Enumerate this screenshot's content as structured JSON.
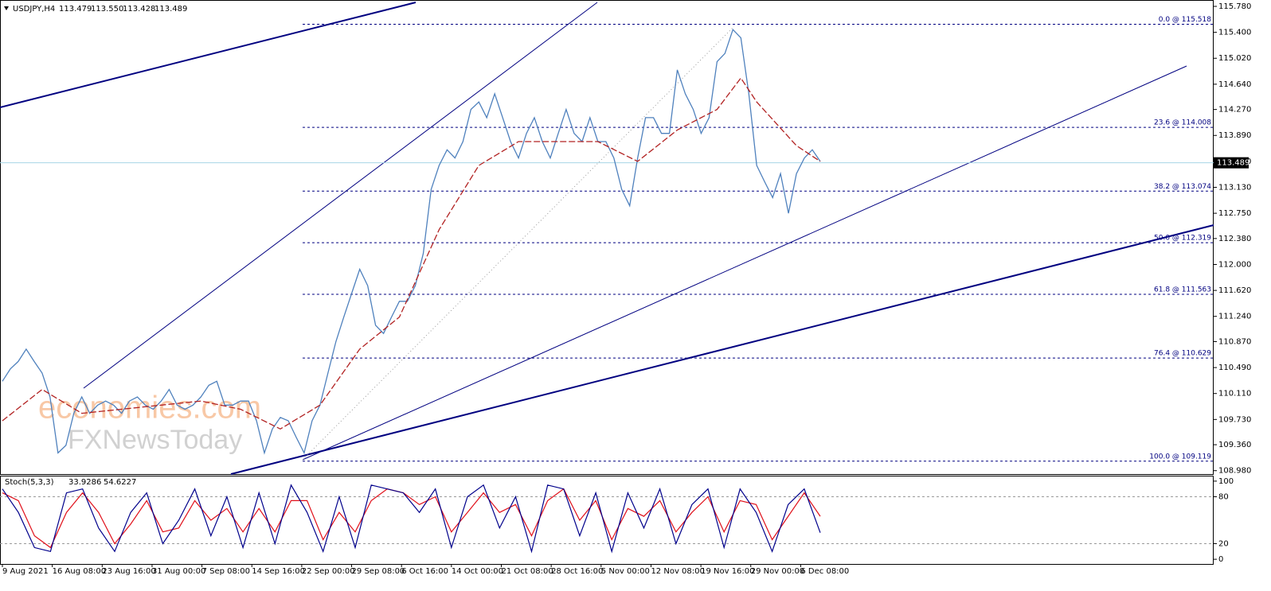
{
  "chart_data": {
    "type": "line",
    "header": {
      "symbol": "USDJPY,H4",
      "open": 113.479,
      "high": {
        "value": 113.55,
        "label": "113.550"
      },
      "low": 113.428,
      "close": 113.489
    },
    "watermark": [
      "economies.com",
      "FXNewsToday"
    ],
    "x_labels": [
      "9 Aug 2021",
      "16 Aug 08:00",
      "23 Aug 16:00",
      "31 Aug 00:00",
      "7 Sep 08:00",
      "14 Sep 16:00",
      "22 Sep 00:00",
      "29 Sep 08:00",
      "6 Oct 16:00",
      "14 Oct 00:00",
      "21 Oct 08:00",
      "28 Oct 16:00",
      "5 Nov 00:00",
      "12 Nov 08:00",
      "19 Nov 16:00",
      "29 Nov 00:00",
      "6 Dec 08:00"
    ],
    "ylim": [
      108.93,
      115.85
    ],
    "yticks": [
      {
        "value": 115.78,
        "label": "115.780"
      },
      {
        "value": 115.4,
        "label": "115.400"
      },
      {
        "value": 115.02,
        "label": "115.020"
      },
      {
        "value": 114.64,
        "label": "114.640"
      },
      {
        "value": 114.27,
        "label": "114.270"
      },
      {
        "value": 113.89,
        "label": "113.890"
      },
      {
        "value": 113.51,
        "label": "113.510"
      },
      {
        "value": 113.13,
        "label": "113.130"
      },
      {
        "value": 112.75,
        "label": "112.750"
      },
      {
        "value": 112.38,
        "label": "112.380"
      },
      {
        "value": 112.0,
        "label": "112.000"
      },
      {
        "value": 111.62,
        "label": "111.620"
      },
      {
        "value": 111.24,
        "label": "111.240"
      },
      {
        "value": 110.87,
        "label": "110.870"
      },
      {
        "value": 110.49,
        "label": "110.490"
      },
      {
        "value": 110.11,
        "label": "110.110"
      },
      {
        "value": 109.73,
        "label": "109.730"
      },
      {
        "value": 109.36,
        "label": "109.360"
      },
      {
        "value": 108.98,
        "label": "108.980"
      }
    ],
    "price": {
      "color": "#4f81bd",
      "values": [
        110.29,
        110.47,
        110.58,
        110.76,
        110.58,
        110.41,
        110.06,
        109.24,
        109.35,
        109.82,
        110.06,
        109.82,
        109.94,
        110.0,
        109.94,
        109.82,
        110.0,
        110.06,
        109.94,
        109.88,
        110.0,
        110.17,
        109.94,
        109.88,
        109.94,
        110.06,
        110.23,
        110.29,
        109.94,
        109.94,
        110.0,
        110.0,
        109.71,
        109.24,
        109.59,
        109.76,
        109.71,
        109.47,
        109.24,
        109.71,
        109.94,
        110.41,
        110.87,
        111.23,
        111.58,
        111.93,
        111.69,
        111.11,
        110.99,
        111.23,
        111.46,
        111.46,
        111.69,
        112.16,
        113.1,
        113.45,
        113.68,
        113.56,
        113.8,
        114.27,
        114.38,
        114.15,
        114.5,
        114.15,
        113.8,
        113.56,
        113.92,
        114.15,
        113.8,
        113.56,
        113.92,
        114.27,
        113.92,
        113.8,
        114.15,
        113.8,
        113.8,
        113.56,
        113.1,
        112.86,
        113.56,
        114.15,
        114.15,
        113.92,
        113.92,
        114.85,
        114.5,
        114.27,
        113.92,
        114.15,
        114.97,
        115.09,
        115.44,
        115.32,
        114.5,
        113.45,
        113.21,
        112.98,
        113.33,
        112.75,
        113.33,
        113.56,
        113.68,
        113.51
      ]
    },
    "moving_average": {
      "color": "#b22222",
      "x": [
        0,
        5,
        10,
        15,
        20,
        25,
        30,
        35,
        40,
        45,
        50,
        55,
        60,
        65,
        70,
        75,
        80,
        85,
        90,
        93,
        95,
        100,
        103
      ],
      "values": [
        109.71,
        110.17,
        109.82,
        109.88,
        109.94,
        110.0,
        109.88,
        109.59,
        109.94,
        110.76,
        111.23,
        112.51,
        113.45,
        113.8,
        113.8,
        113.8,
        113.51,
        113.97,
        114.27,
        114.73,
        114.38,
        113.74,
        113.51
      ]
    },
    "fibonacci": {
      "color": "#000080",
      "levels": [
        {
          "value": 115.518,
          "label": "0.0 @ 115.518"
        },
        {
          "value": 114.008,
          "label": "23.6 @ 114.008"
        },
        {
          "value": 113.074,
          "label": "38.2 @ 113.074"
        },
        {
          "value": 112.319,
          "label": "50.0 @ 112.319"
        },
        {
          "value": 111.563,
          "label": "61.8 @ 111.563"
        },
        {
          "value": 110.629,
          "label": "76.4 @ 110.629"
        },
        {
          "value": 109.119,
          "label": "100.0 @ 109.119"
        }
      ]
    },
    "current_price": {
      "value": 113.489,
      "color": "#a6d5e6"
    },
    "stochastic": {
      "title": "Stoch(5,3,3)",
      "main_value": 33.9286,
      "signal_value": 54.6227,
      "ylim": [
        -6,
        107
      ],
      "yticks": [
        100,
        80,
        20,
        0
      ],
      "levels": [
        80,
        20
      ],
      "main": {
        "color": "#00008b",
        "values": [
          90,
          60,
          15,
          10,
          85,
          90,
          40,
          10,
          60,
          85,
          20,
          50,
          90,
          30,
          80,
          15,
          85,
          20,
          95,
          60,
          10,
          80,
          15,
          95,
          90,
          85,
          60,
          90,
          15,
          80,
          95,
          40,
          80,
          10,
          95,
          90,
          30,
          85,
          10,
          85,
          40,
          90,
          20,
          70,
          90,
          15,
          90,
          60,
          10,
          70,
          90,
          34
        ]
      },
      "signal": {
        "color": "#e0101a",
        "values": [
          85,
          75,
          30,
          15,
          60,
          85,
          60,
          20,
          45,
          75,
          35,
          40,
          75,
          50,
          65,
          35,
          65,
          35,
          75,
          75,
          25,
          60,
          35,
          75,
          90,
          85,
          70,
          80,
          35,
          60,
          85,
          60,
          70,
          30,
          75,
          90,
          50,
          75,
          25,
          65,
          55,
          75,
          35,
          60,
          80,
          35,
          75,
          70,
          25,
          55,
          85,
          55
        ]
      }
    }
  }
}
